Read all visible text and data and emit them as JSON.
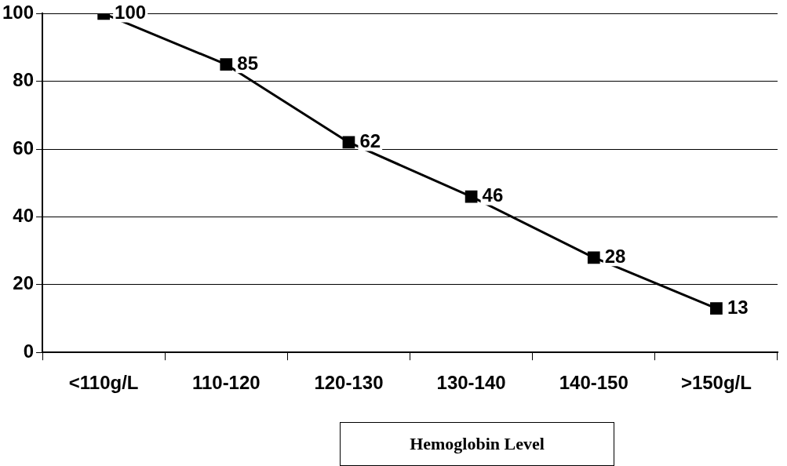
{
  "chart_data": {
    "type": "line",
    "xlabel": "Hemoglobin Level",
    "categories": [
      "<110g/L",
      "110-120",
      "120-130",
      "130-140",
      "140-150",
      ">150g/L"
    ],
    "series": [
      {
        "color": "#000000",
        "values": [
          100,
          85,
          62,
          46,
          28,
          13
        ]
      }
    ],
    "ylim": [
      0,
      100
    ],
    "yticks": [
      0,
      20,
      40,
      60,
      80,
      100
    ],
    "grid": "y",
    "legend": false,
    "marker": "square",
    "line_style": "solid",
    "data_labels": true
  }
}
